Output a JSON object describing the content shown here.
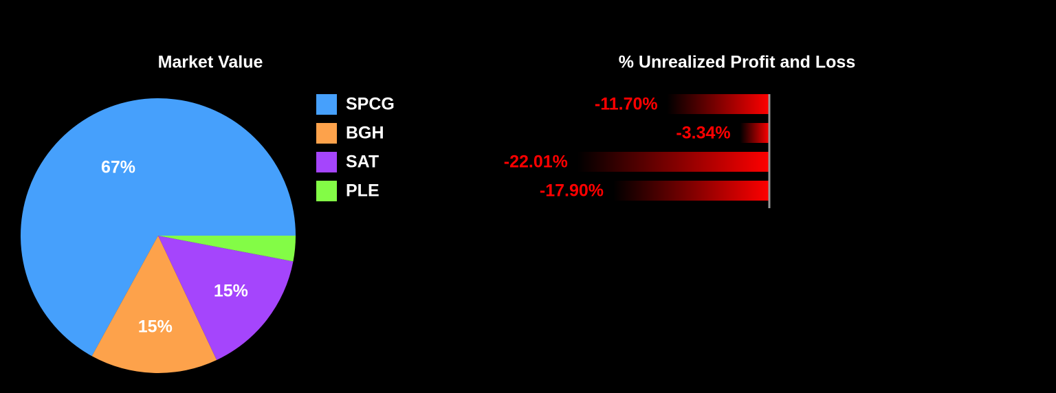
{
  "chart_data": [
    {
      "type": "pie",
      "title": "Market Value",
      "categories": [
        "SPCG",
        "BGH",
        "SAT",
        "PLE"
      ],
      "values": [
        67,
        15,
        15,
        3
      ],
      "value_labels": [
        "67%",
        "15%",
        "15%",
        null
      ],
      "colors": [
        "#46a0fc",
        "#fda24b",
        "#a545fc",
        "#83fc46"
      ]
    },
    {
      "type": "bar",
      "orientation": "horizontal",
      "title": "% Unrealized Profit and Loss",
      "values": [
        -11.7,
        -3.34,
        -22.01,
        -17.9
      ],
      "value_labels": [
        "-11.70%",
        "-3.34%",
        "-22.01%",
        "-17.90%"
      ],
      "color": "#ff0000",
      "xlim": [
        -25,
        0
      ]
    }
  ]
}
